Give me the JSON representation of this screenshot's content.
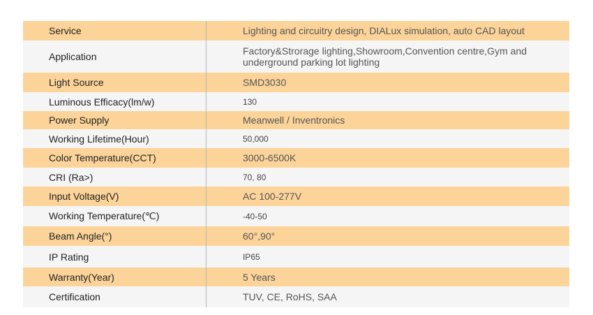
{
  "rows": [
    {
      "label": "Service",
      "value": "Lighting and circuitry design, DIALux simulation, auto CAD layout"
    },
    {
      "label": "Application",
      "value": "Factory&Strorage lighting,Showroom,Convention centre,Gym and underground parking lot lighting"
    },
    {
      "label": "Light Source",
      "value": "SMD3030"
    },
    {
      "label": "Luminous Efficacy(lm/w)",
      "value": "130"
    },
    {
      "label": "Power Supply",
      "value": "Meanwell / Inventronics"
    },
    {
      "label": "Working Lifetime(Hour)",
      "value": "50,000"
    },
    {
      "label": "Color Temperature(CCT)",
      "value": "3000-6500K"
    },
    {
      "label": "CRI (Ra>)",
      "value": "70, 80"
    },
    {
      "label": "Input Voltage(V)",
      "value": "AC 100-277V"
    },
    {
      "label": "Working Temperature(℃)",
      "value": "-40-50"
    },
    {
      "label": "Beam Angle(°)",
      "value": "60°,90°"
    },
    {
      "label": "IP Rating",
      "value": "IP65"
    },
    {
      "label": "Warranty(Year)",
      "value": "5 Years"
    },
    {
      "label": "Certification",
      "value": "TUV, CE, RoHS, SAA"
    }
  ]
}
